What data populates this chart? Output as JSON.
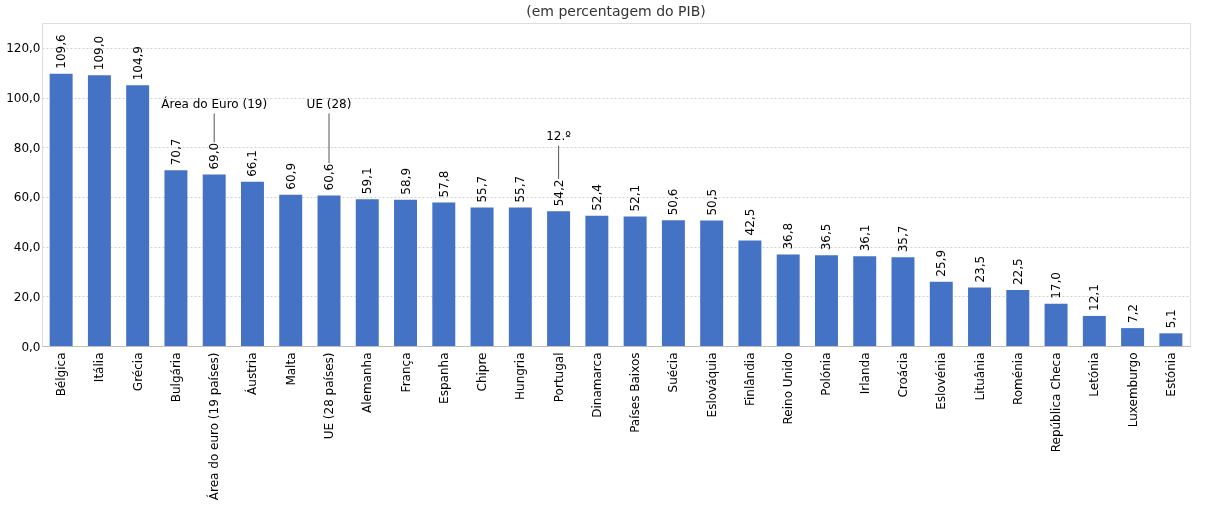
{
  "chart_data": {
    "type": "bar",
    "title": "(em percentagem do PIB)",
    "categories": [
      "Bélgica",
      "Itália",
      "Grécia",
      "Bulgária",
      "Área do euro (19 países)",
      "Áustria",
      "Malta",
      "UE (28 países)",
      "Alemanha",
      "França",
      "Espanha",
      "Chipre",
      "Hungria",
      "Portugal",
      "Dinamarca",
      "Países Baixos",
      "Suécia",
      "Eslováquia",
      "Finlândia",
      "Reino Unido",
      "Polónia",
      "Irlanda",
      "Croácia",
      "Eslovénia",
      "Lituânia",
      "Roménia",
      "República Checa",
      "Letónia",
      "Luxemburgo",
      "Estónia"
    ],
    "values": [
      109.6,
      109.0,
      104.9,
      70.7,
      69.0,
      66.1,
      60.9,
      60.6,
      59.1,
      58.9,
      57.8,
      55.7,
      55.7,
      54.2,
      52.4,
      52.1,
      50.6,
      50.5,
      42.5,
      36.8,
      36.5,
      36.1,
      35.7,
      25.9,
      23.5,
      22.5,
      17.0,
      12.1,
      7.2,
      5.1
    ],
    "value_labels": [
      "109,6",
      "109,0",
      "104,9",
      "70,7",
      "69,0",
      "66,1",
      "60,9",
      "60,6",
      "59,1",
      "58,9",
      "57,8",
      "55,7",
      "55,7",
      "54,2",
      "52,4",
      "52,1",
      "50,6",
      "50,5",
      "42,5",
      "36,8",
      "36,5",
      "36,1",
      "35,7",
      "25,9",
      "23,5",
      "22,5",
      "17,0",
      "12,1",
      "7,2",
      "5,1"
    ],
    "color": "#4472c4",
    "ylim": [
      0,
      130
    ],
    "yticks": [
      {
        "value": 0,
        "label": "0,0"
      },
      {
        "value": 20,
        "label": "20,0"
      },
      {
        "value": 40,
        "label": "40,0"
      },
      {
        "value": 60,
        "label": "60,0"
      },
      {
        "value": 80,
        "label": "80,0"
      },
      {
        "value": 100,
        "label": "100,0"
      },
      {
        "value": 120,
        "label": "120,0"
      }
    ],
    "grid": "y",
    "annotations": [
      "Área do Euro (19)",
      "UE (28)",
      "12.º"
    ]
  }
}
